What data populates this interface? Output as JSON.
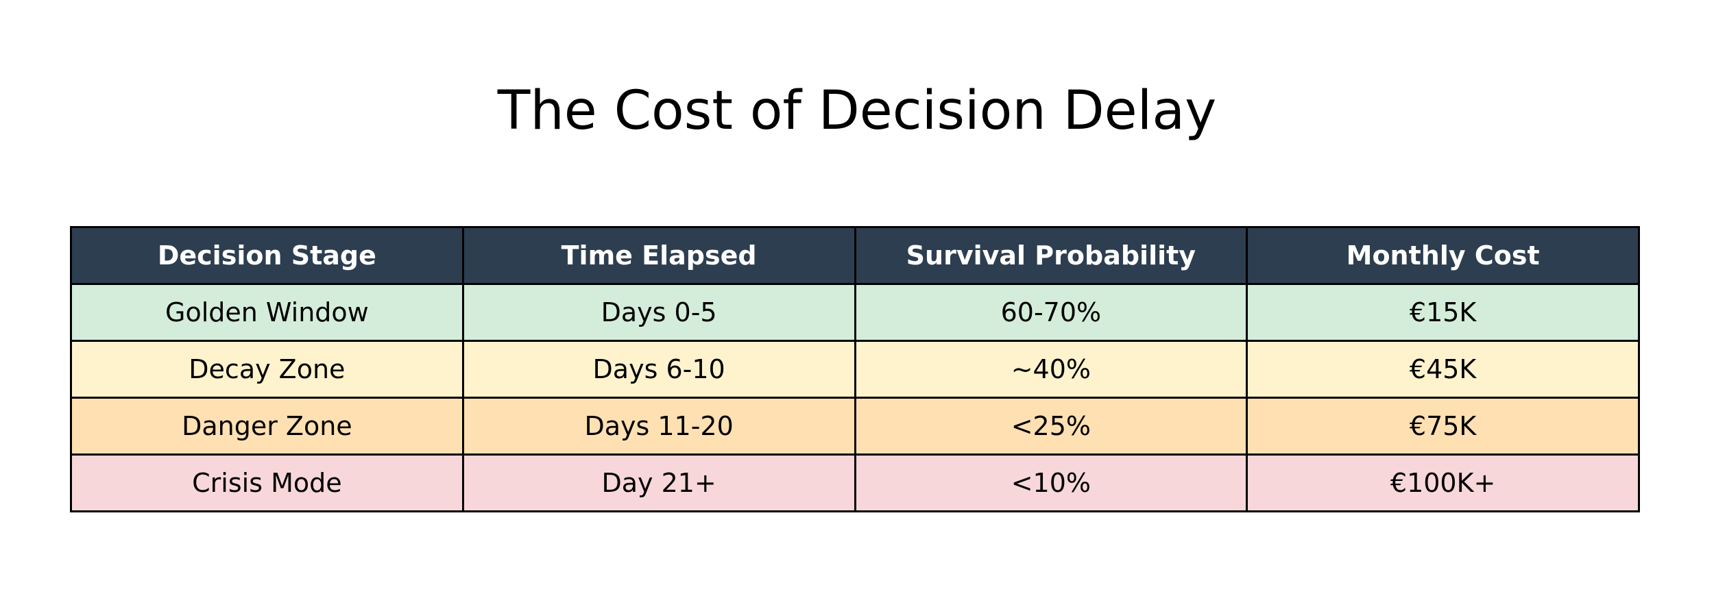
{
  "chart_data": {
    "type": "table",
    "title": "The Cost of Decision Delay",
    "header_color": "#2d3e50",
    "columns": [
      "Decision Stage",
      "Time Elapsed",
      "Survival Probability",
      "Monthly Cost"
    ],
    "rows": [
      {
        "cells": [
          "Golden Window",
          "Days 0-5",
          "60-70%",
          "€15K"
        ],
        "color": "#d4edda"
      },
      {
        "cells": [
          "Decay Zone",
          "Days 6-10",
          "~40%",
          "€45K"
        ],
        "color": "#fff3cd"
      },
      {
        "cells": [
          "Danger Zone",
          "Days 11-20",
          "<25%",
          "€75K"
        ],
        "color": "#ffe0b3"
      },
      {
        "cells": [
          "Crisis Mode",
          "Day 21+",
          "<10%",
          "€100K+"
        ],
        "color": "#f8d7da"
      }
    ]
  }
}
